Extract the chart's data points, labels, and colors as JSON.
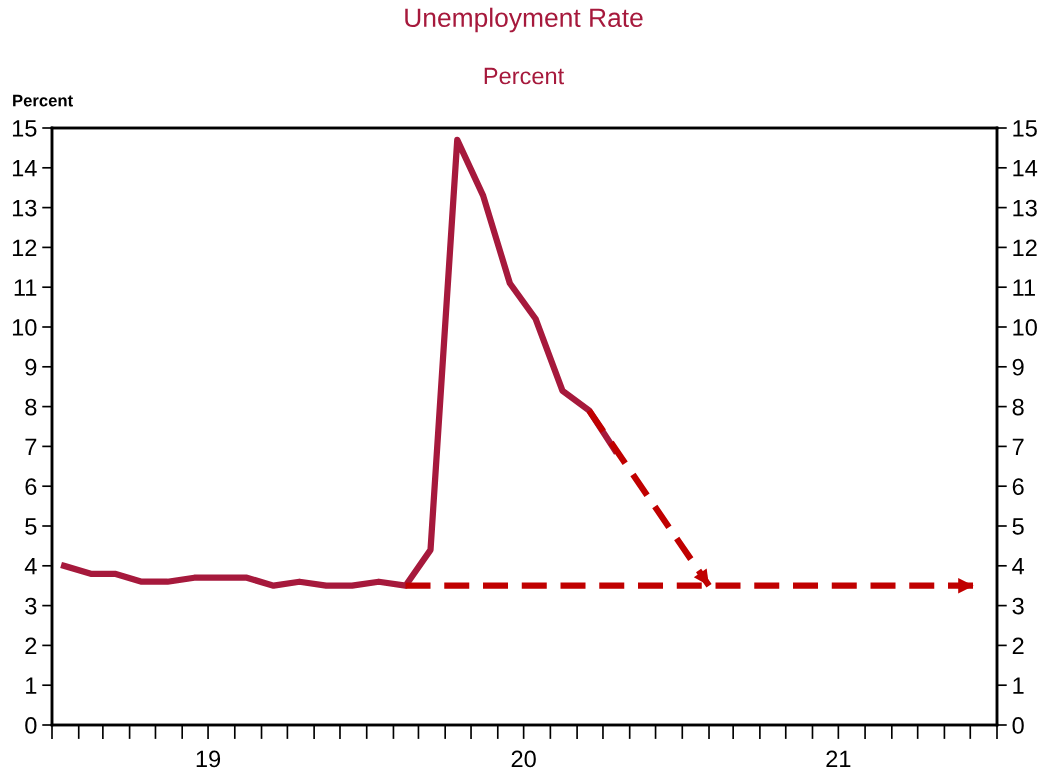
{
  "chart_data": {
    "type": "line",
    "title": "Unemployment Rate",
    "subtitle": "Percent",
    "ylabel": "Percent",
    "series": [
      {
        "color": "#a6193c",
        "x": [
          "2019-01-15",
          "2019-02-15",
          "2019-03-15",
          "2019-04-15",
          "2019-05-15",
          "2019-06-15",
          "2019-07-15",
          "2019-08-15",
          "2019-09-15",
          "2019-10-15",
          "2019-11-15",
          "2019-12-15",
          "2020-01-15",
          "2020-02-15",
          "2020-03-15",
          "2020-04-15",
          "2020-05-15",
          "2020-06-15",
          "2020-07-15",
          "2020-08-15",
          "2020-09-15",
          "2020-10-15"
        ],
        "values": [
          4.0,
          3.8,
          3.8,
          3.6,
          3.6,
          3.7,
          3.7,
          3.7,
          3.5,
          3.6,
          3.5,
          3.5,
          3.6,
          3.5,
          4.4,
          14.7,
          13.3,
          11.1,
          10.2,
          8.4,
          7.9,
          6.9
        ],
        "line_style": "solid"
      },
      {
        "color": "#c00000",
        "x": [
          "2020-09-15",
          "2021-02-01"
        ],
        "values": [
          7.9,
          3.5
        ],
        "line_style": "dashed"
      },
      {
        "color": "#c00000",
        "x": [
          "2020-02-15",
          "2021-12-05"
        ],
        "values": [
          3.5,
          3.5
        ],
        "line_style": "dashed"
      }
    ],
    "xlim": [
      "2019-01-01",
      "2022-01-01"
    ],
    "xticks": [
      {
        "value": "2019-01-01",
        "label": null
      },
      {
        "value": "2019-02-01",
        "label": null
      },
      {
        "value": "2019-03-01",
        "label": null
      },
      {
        "value": "2019-04-01",
        "label": null
      },
      {
        "value": "2019-05-01",
        "label": null
      },
      {
        "value": "2019-06-01",
        "label": null
      },
      {
        "value": "2019-07-01",
        "label": "19"
      },
      {
        "value": "2019-08-01",
        "label": null
      },
      {
        "value": "2019-09-01",
        "label": null
      },
      {
        "value": "2019-10-01",
        "label": null
      },
      {
        "value": "2019-11-01",
        "label": null
      },
      {
        "value": "2019-12-01",
        "label": null
      },
      {
        "value": "2020-01-01",
        "label": null
      },
      {
        "value": "2020-02-01",
        "label": null
      },
      {
        "value": "2020-03-01",
        "label": null
      },
      {
        "value": "2020-04-01",
        "label": null
      },
      {
        "value": "2020-05-01",
        "label": null
      },
      {
        "value": "2020-06-01",
        "label": null
      },
      {
        "value": "2020-07-01",
        "label": "20"
      },
      {
        "value": "2020-08-01",
        "label": null
      },
      {
        "value": "2020-09-01",
        "label": null
      },
      {
        "value": "2020-10-01",
        "label": null
      },
      {
        "value": "2020-11-01",
        "label": null
      },
      {
        "value": "2020-12-01",
        "label": null
      },
      {
        "value": "2021-01-01",
        "label": null
      },
      {
        "value": "2021-02-01",
        "label": null
      },
      {
        "value": "2021-03-01",
        "label": null
      },
      {
        "value": "2021-04-01",
        "label": null
      },
      {
        "value": "2021-05-01",
        "label": null
      },
      {
        "value": "2021-06-01",
        "label": null
      },
      {
        "value": "2021-07-01",
        "label": "21"
      },
      {
        "value": "2021-08-01",
        "label": null
      },
      {
        "value": "2021-09-01",
        "label": null
      },
      {
        "value": "2021-10-01",
        "label": null
      },
      {
        "value": "2021-11-01",
        "label": null
      },
      {
        "value": "2021-12-01",
        "label": null
      },
      {
        "value": "2022-01-01",
        "label": null
      }
    ],
    "ylim": [
      0,
      15
    ],
    "yticks": [
      0,
      1,
      2,
      3,
      4,
      5,
      6,
      7,
      8,
      9,
      10,
      11,
      12,
      13,
      14,
      15
    ],
    "y2lim": [
      0,
      15
    ],
    "y2ticks": [
      0,
      1,
      2,
      3,
      4,
      5,
      6,
      7,
      8,
      9,
      10,
      11,
      12,
      13,
      14,
      15
    ],
    "grid": false,
    "legend": false
  }
}
